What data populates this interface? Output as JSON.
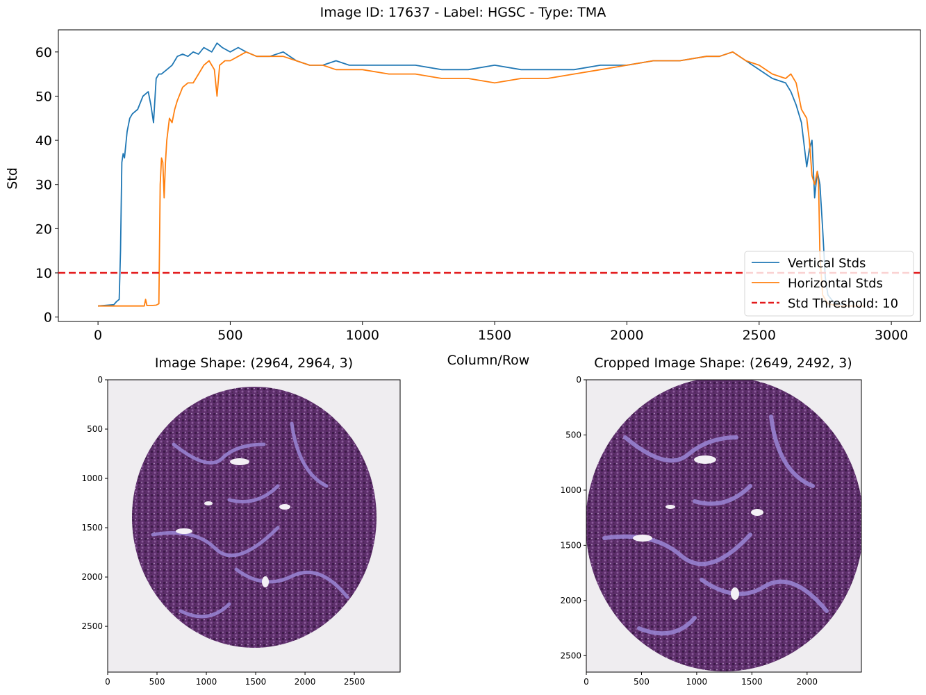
{
  "figure": {
    "suptitle": "Image ID: 17637 - Label: HGSC - Type: TMA",
    "xlabel": "Column/Row"
  },
  "colors": {
    "vertical": "#1f77b4",
    "horizontal": "#ff7f0e",
    "threshold": "#e31a1c",
    "he_stain": "#6a3d7d",
    "stroma": "#9a86d6",
    "slide_bg": "#efedf0"
  },
  "chart_data": [
    {
      "type": "line",
      "ylabel": "Std",
      "xlim": [
        -150,
        3110
      ],
      "ylim": [
        -1,
        65
      ],
      "xticks": [
        0,
        500,
        1000,
        1500,
        2000,
        2500,
        3000
      ],
      "yticks": [
        0,
        10,
        20,
        30,
        40,
        50,
        60
      ],
      "grid": false,
      "legend_position": "lower-right",
      "series": [
        {
          "name": "Vertical Stds",
          "x": [
            0,
            60,
            70,
            80,
            85,
            90,
            95,
            100,
            110,
            120,
            130,
            150,
            170,
            190,
            200,
            210,
            220,
            230,
            240,
            260,
            280,
            300,
            320,
            340,
            360,
            380,
            400,
            430,
            450,
            470,
            500,
            530,
            560,
            600,
            650,
            700,
            750,
            800,
            850,
            900,
            950,
            1000,
            1100,
            1200,
            1300,
            1400,
            1500,
            1600,
            1700,
            1800,
            1900,
            2000,
            2100,
            2200,
            2300,
            2350,
            2400,
            2450,
            2500,
            2550,
            2600,
            2620,
            2640,
            2660,
            2680,
            2690,
            2700,
            2710,
            2720,
            2730,
            2740,
            2750,
            2760,
            2780,
            2800,
            2820
          ],
          "values": [
            2.5,
            2.8,
            3.5,
            4,
            15,
            35,
            37,
            36,
            42,
            45,
            46,
            47,
            50,
            51,
            48,
            44,
            54,
            55,
            55,
            56,
            57,
            59,
            59.5,
            59,
            60,
            59.5,
            61,
            60,
            62,
            61,
            60,
            61,
            60,
            59,
            59,
            60,
            58,
            57,
            57,
            58,
            57,
            57,
            57,
            57,
            56,
            56,
            57,
            56,
            56,
            56,
            57,
            57,
            58,
            58,
            59,
            59,
            60,
            58,
            56,
            54,
            53,
            51,
            48,
            44,
            34,
            38,
            40,
            27,
            33,
            30,
            20,
            9,
            5,
            3.5,
            3,
            2.7
          ]
        },
        {
          "name": "Horizontal Stds",
          "x": [
            0,
            50,
            100,
            150,
            175,
            180,
            185,
            200,
            220,
            230,
            235,
            240,
            245,
            250,
            255,
            260,
            270,
            280,
            290,
            300,
            320,
            340,
            360,
            380,
            400,
            420,
            440,
            450,
            460,
            480,
            500,
            530,
            560,
            600,
            650,
            700,
            750,
            800,
            850,
            900,
            950,
            1000,
            1100,
            1200,
            1300,
            1400,
            1500,
            1600,
            1700,
            1800,
            1900,
            2000,
            2100,
            2200,
            2300,
            2350,
            2400,
            2450,
            2500,
            2550,
            2600,
            2620,
            2640,
            2660,
            2680,
            2690,
            2700,
            2710,
            2720,
            2725,
            2730,
            2740,
            2760,
            2800,
            2850,
            2900
          ],
          "values": [
            2.5,
            2.5,
            2.5,
            2.5,
            2.5,
            4,
            2.6,
            2.6,
            2.7,
            3,
            30,
            36,
            35,
            27,
            35,
            40,
            45,
            44,
            47,
            49,
            52,
            53,
            53,
            55,
            57,
            58,
            56,
            50,
            57,
            58,
            58,
            59,
            60,
            59,
            59,
            59,
            58,
            57,
            57,
            56,
            56,
            56,
            55,
            55,
            54,
            54,
            53,
            54,
            54,
            55,
            56,
            57,
            58,
            58,
            59,
            59,
            60,
            58,
            57,
            55,
            54,
            55,
            53,
            47,
            45,
            40,
            32,
            30,
            33,
            30,
            14,
            5,
            3,
            2.5,
            2.5,
            2.5
          ]
        }
      ],
      "threshold": {
        "name": "Std Threshold: 10",
        "value": 10
      },
      "legend": [
        "Vertical Stds",
        "Horizontal Stds",
        "Std Threshold: 10"
      ]
    },
    {
      "type": "image",
      "title": "Image Shape: (2964, 2964, 3)",
      "width": 2964,
      "height": 2964,
      "xticks": [
        0,
        500,
        1000,
        1500,
        2000,
        2500
      ],
      "yticks": [
        0,
        500,
        1000,
        1500,
        2000,
        2500
      ],
      "content": "circular H&E-stained tissue microarray core"
    },
    {
      "type": "image",
      "title": "Cropped Image Shape: (2649, 2492, 3)",
      "width": 2492,
      "height": 2649,
      "xticks": [
        0,
        500,
        1000,
        1500,
        2000
      ],
      "yticks": [
        0,
        500,
        1000,
        1500,
        2000,
        2500
      ],
      "content": "cropped circular H&E-stained tissue microarray core"
    }
  ]
}
